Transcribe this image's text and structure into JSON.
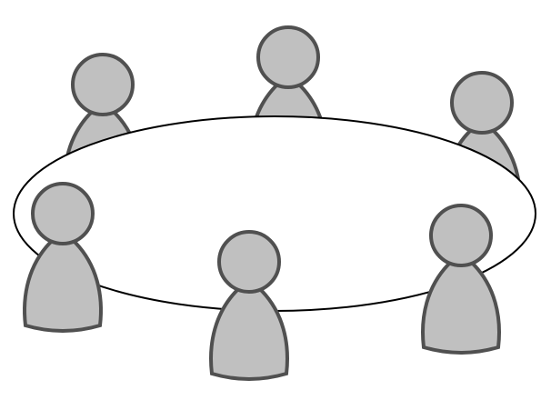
{
  "colors": {
    "background": "#ffffff",
    "person_fill": "#c0c0c0",
    "person_stroke": "#505050",
    "table_fill": "#ffffff",
    "table_stroke": "#000000"
  },
  "people_back": [
    {
      "id": "back-left"
    },
    {
      "id": "back-center"
    },
    {
      "id": "back-right"
    }
  ],
  "people_front": [
    {
      "id": "front-left"
    },
    {
      "id": "front-center"
    },
    {
      "id": "front-right"
    }
  ]
}
